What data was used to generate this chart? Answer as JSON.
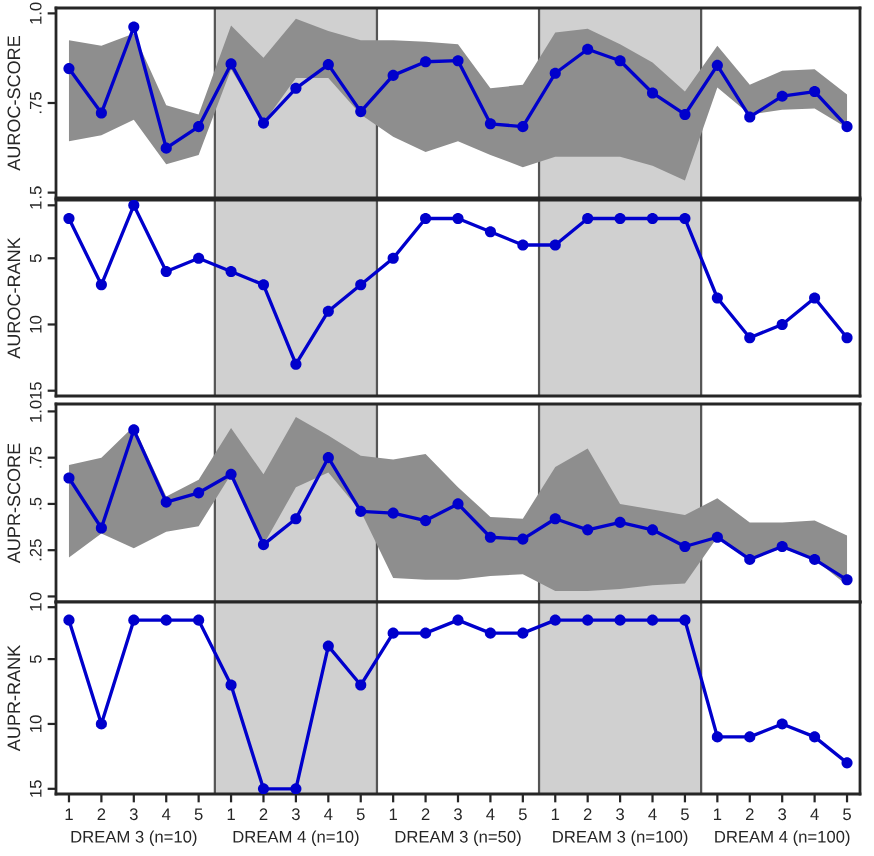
{
  "chart_data": [
    {
      "type": "line",
      "ylabel": "AUROC-SCORE",
      "categories": [
        "1",
        "2",
        "3",
        "4",
        "5",
        "1",
        "2",
        "3",
        "4",
        "5",
        "1",
        "2",
        "3",
        "4",
        "5",
        "1",
        "2",
        "3",
        "4",
        "5",
        "1",
        "2",
        "3",
        "4",
        "5"
      ],
      "ylim": [
        0.485,
        1.015
      ],
      "yticks": [
        {
          "value": 0.5,
          "label": ".5"
        },
        {
          "value": 0.75,
          "label": ".75"
        },
        {
          "value": 1.0,
          "label": "1.0"
        }
      ],
      "tick_labels": "y",
      "marker": "circle",
      "series": [
        {
          "color": "#0000cc",
          "values": [
            0.846,
            0.722,
            0.962,
            0.624,
            0.684,
            0.859,
            0.694,
            0.791,
            0.857,
            0.726,
            0.827,
            0.865,
            0.868,
            0.692,
            0.684,
            0.833,
            0.9,
            0.868,
            0.778,
            0.718,
            0.855,
            0.711,
            0.769,
            0.782,
            0.684
          ],
          "lower": [
            0.643,
            0.66,
            0.703,
            0.579,
            0.605,
            0.844,
            0.694,
            0.82,
            0.82,
            0.718,
            0.656,
            0.613,
            0.643,
            0.605,
            0.571,
            0.6,
            0.6,
            0.6,
            0.575,
            0.534,
            0.793,
            0.718,
            0.731,
            0.735,
            0.68
          ],
          "upper": [
            0.925,
            0.91,
            0.944,
            0.744,
            0.718,
            0.966,
            0.876,
            0.985,
            0.951,
            0.925,
            0.925,
            0.921,
            0.914,
            0.791,
            0.801,
            0.947,
            0.957,
            0.914,
            0.863,
            0.782,
            0.91,
            0.801,
            0.84,
            0.844,
            0.774
          ]
        }
      ]
    },
    {
      "type": "line",
      "ylabel": "AUROC-RANK",
      "categories": [
        "1",
        "2",
        "3",
        "4",
        "5",
        "1",
        "2",
        "3",
        "4",
        "5",
        "1",
        "2",
        "3",
        "4",
        "5",
        "1",
        "2",
        "3",
        "4",
        "5",
        "1",
        "2",
        "3",
        "4",
        "5"
      ],
      "ylim": [
        15.4,
        0.6
      ],
      "yticks": [
        1,
        5,
        10,
        15
      ],
      "tick_labels": "y",
      "marker": "circle",
      "series": [
        {
          "color": "#0000cc",
          "values": [
            2,
            7,
            1,
            6,
            5,
            6,
            7,
            13,
            9,
            7,
            5,
            2,
            2,
            3,
            4,
            4,
            2,
            2,
            2,
            2,
            8,
            11,
            10,
            8,
            11
          ]
        }
      ]
    },
    {
      "type": "line",
      "ylabel": "AUPR-SCORE",
      "categories": [
        "1",
        "2",
        "3",
        "4",
        "5",
        "1",
        "2",
        "3",
        "4",
        "5",
        "1",
        "2",
        "3",
        "4",
        "5",
        "1",
        "2",
        "3",
        "4",
        "5",
        "1",
        "2",
        "3",
        "4",
        "5"
      ],
      "ylim": [
        -0.03,
        1.04
      ],
      "yticks": [
        {
          "value": 0,
          "label": "0"
        },
        {
          "value": 0.25,
          "label": ".25"
        },
        {
          "value": 0.5,
          "label": ".5"
        },
        {
          "value": 0.75,
          "label": ".75"
        },
        {
          "value": 1.0,
          "label": "1.0"
        }
      ],
      "tick_labels": "y",
      "marker": "circle",
      "series": [
        {
          "color": "#0000cc",
          "values": [
            0.64,
            0.37,
            0.9,
            0.51,
            0.56,
            0.66,
            0.28,
            0.42,
            0.75,
            0.46,
            0.45,
            0.41,
            0.5,
            0.32,
            0.31,
            0.42,
            0.36,
            0.4,
            0.36,
            0.27,
            0.32,
            0.2,
            0.27,
            0.2,
            0.09
          ],
          "lower": [
            0.21,
            0.34,
            0.26,
            0.35,
            0.38,
            0.66,
            0.28,
            0.59,
            0.67,
            0.46,
            0.1,
            0.09,
            0.09,
            0.11,
            0.12,
            0.03,
            0.03,
            0.04,
            0.06,
            0.07,
            0.32,
            0.2,
            0.26,
            0.2,
            0.06
          ],
          "upper": [
            0.71,
            0.75,
            0.92,
            0.54,
            0.63,
            0.91,
            0.66,
            0.97,
            0.87,
            0.76,
            0.74,
            0.77,
            0.59,
            0.43,
            0.42,
            0.7,
            0.8,
            0.5,
            0.47,
            0.44,
            0.53,
            0.4,
            0.4,
            0.41,
            0.33
          ]
        }
      ]
    },
    {
      "type": "line",
      "ylabel": "AUPR-RANK",
      "categories": [
        "1",
        "2",
        "3",
        "4",
        "5",
        "1",
        "2",
        "3",
        "4",
        "5",
        "1",
        "2",
        "3",
        "4",
        "5",
        "1",
        "2",
        "3",
        "4",
        "5",
        "1",
        "2",
        "3",
        "4",
        "5"
      ],
      "ylim": [
        15.4,
        0.6
      ],
      "yticks": [
        1,
        5,
        10,
        15
      ],
      "marker": "circle",
      "series": [
        {
          "color": "#0000cc",
          "values": [
            2,
            10,
            2,
            2,
            2,
            7,
            15,
            15,
            4,
            7,
            3,
            3,
            2,
            3,
            3,
            2,
            2,
            2,
            2,
            2,
            11,
            11,
            10,
            11,
            13
          ]
        }
      ],
      "annotations": [
        "DREAM 3 (n=10)",
        "DREAM 4 (n=10)",
        "DREAM 3 (n=50)",
        "DREAM 3 (n=100)",
        "DREAM 4 (n=100)"
      ]
    }
  ]
}
